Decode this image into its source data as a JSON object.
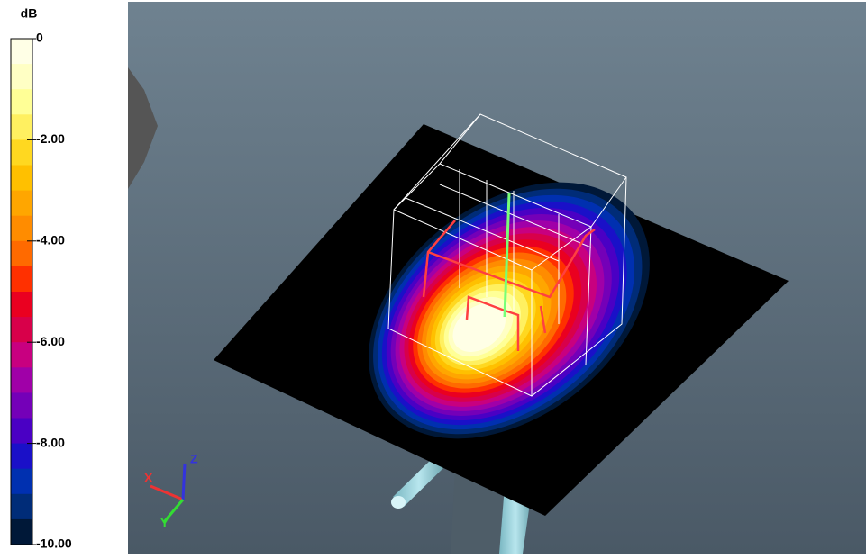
{
  "colorbar": {
    "unit": "dB",
    "ticks": [
      {
        "value": 0,
        "label": "0"
      },
      {
        "value": -2,
        "label": "-2.00"
      },
      {
        "value": -4,
        "label": "-4.00"
      },
      {
        "value": -6,
        "label": "-6.00"
      },
      {
        "value": -8,
        "label": "-8.00"
      },
      {
        "value": -10,
        "label": "-10.00"
      }
    ],
    "range": [
      0,
      -10
    ],
    "colors": [
      "#ffffe6",
      "#ffffc4",
      "#ffff96",
      "#fff060",
      "#ffd820",
      "#ffc000",
      "#ffa600",
      "#ff8c00",
      "#ff6a00",
      "#ff3000",
      "#ea0020",
      "#d8004a",
      "#c80080",
      "#a000a8",
      "#7400b8",
      "#4a00c4",
      "#1a10c8",
      "#0030b0",
      "#002c78",
      "#001838"
    ]
  },
  "axes": {
    "x": "X",
    "y": "Y",
    "z": "Z"
  }
}
